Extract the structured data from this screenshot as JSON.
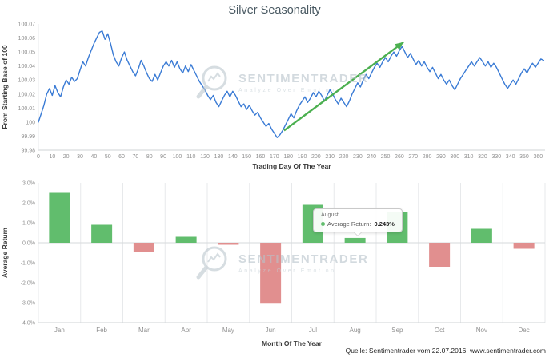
{
  "page": {
    "title": "Silver Seasonality",
    "source_note": "Quelle: Sentimentrader vom 22.07.2016, www.sentimentrader.com"
  },
  "watermark": {
    "brand": "SENTIMENTRADER",
    "tagline": "Analyze Over Emotion"
  },
  "tooltip": {
    "title": "August",
    "label": "Average Return:",
    "value": "0.243%"
  },
  "colors": {
    "line": "#3a7bd5",
    "positive_bar": "#61bd6d",
    "negative_bar": "#e18f8f",
    "arrow": "#4cb050",
    "grid": "#e7e9eb",
    "zero_line": "#d6d9db",
    "axis_line": "#cfd3d6",
    "tick_text": "#8f8f8f",
    "title_text": "#4a5a63"
  },
  "chart_data": [
    {
      "type": "line",
      "title": "Silver Seasonality",
      "xlabel": "Trading Day Of The Year",
      "ylabel": "From Starting Base of 100",
      "xlim": [
        0,
        365
      ],
      "ylim": [
        99.98,
        100.07
      ],
      "grid": false,
      "yticks": [
        99.98,
        99.99,
        100,
        100.01,
        100.02,
        100.03,
        100.04,
        100.05,
        100.06,
        100.07
      ],
      "ytick_labels": [
        "99.98",
        "99.99",
        "100",
        "100.01",
        "100.02",
        "100.03",
        "100.04",
        "100.05",
        "100.06",
        "100.07"
      ],
      "xticks": [
        0,
        10,
        20,
        30,
        40,
        50,
        60,
        70,
        80,
        90,
        100,
        110,
        120,
        130,
        140,
        150,
        160,
        170,
        180,
        190,
        200,
        210,
        220,
        230,
        240,
        250,
        260,
        270,
        280,
        290,
        300,
        310,
        320,
        330,
        340,
        350,
        360
      ],
      "x_step": 2,
      "y": [
        100.0,
        100.006,
        100.012,
        100.02,
        100.024,
        100.019,
        100.026,
        100.021,
        100.018,
        100.025,
        100.03,
        100.027,
        100.032,
        100.029,
        100.031,
        100.037,
        100.043,
        100.04,
        100.046,
        100.051,
        100.056,
        100.06,
        100.064,
        100.065,
        100.059,
        100.063,
        100.056,
        100.048,
        100.043,
        100.04,
        100.046,
        100.05,
        100.044,
        100.04,
        100.036,
        100.033,
        100.038,
        100.044,
        100.04,
        100.035,
        100.031,
        100.029,
        100.034,
        100.03,
        100.035,
        100.04,
        100.043,
        100.04,
        100.044,
        100.039,
        100.043,
        100.038,
        100.035,
        100.04,
        100.036,
        100.041,
        100.037,
        100.033,
        100.029,
        100.026,
        100.023,
        100.019,
        100.016,
        100.019,
        100.014,
        100.011,
        100.015,
        100.019,
        100.022,
        100.018,
        100.022,
        100.019,
        100.015,
        100.011,
        100.013,
        100.009,
        100.012,
        100.008,
        100.005,
        100.007,
        100.003,
        100.0,
        99.997,
        99.999,
        99.995,
        99.992,
        99.989,
        99.991,
        99.994,
        99.998,
        100.002,
        100.006,
        100.003,
        100.008,
        100.012,
        100.015,
        100.018,
        100.014,
        100.017,
        100.021,
        100.018,
        100.022,
        100.019,
        100.015,
        100.019,
        100.023,
        100.02,
        100.016,
        100.013,
        100.017,
        100.014,
        100.011,
        100.015,
        100.02,
        100.024,
        100.028,
        100.025,
        100.03,
        100.034,
        100.031,
        100.035,
        100.039,
        100.042,
        100.039,
        100.043,
        100.046,
        100.043,
        100.047,
        100.05,
        100.047,
        100.051,
        100.054,
        100.05,
        100.046,
        100.049,
        100.045,
        100.041,
        100.044,
        100.04,
        100.043,
        100.039,
        100.036,
        100.039,
        100.035,
        100.031,
        100.034,
        100.03,
        100.027,
        100.03,
        100.026,
        100.023,
        100.027,
        100.031,
        100.034,
        100.037,
        100.04,
        100.043,
        100.04,
        100.043,
        100.046,
        100.043,
        100.04,
        100.043,
        100.039,
        100.042,
        100.039,
        100.035,
        100.031,
        100.027,
        100.024,
        100.027,
        100.03,
        100.027,
        100.031,
        100.035,
        100.038,
        100.035,
        100.039,
        100.042,
        100.039,
        100.042,
        100.045,
        100.044
      ],
      "trend_arrow": {
        "x1": 177,
        "y1": 99.994,
        "x2": 263,
        "y2": 100.057
      }
    },
    {
      "type": "bar",
      "xlabel": "Month Of The Year",
      "ylabel": "Average Return",
      "categories": [
        "Jan",
        "Feb",
        "Mar",
        "Apr",
        "May",
        "Jun",
        "Jul",
        "Aug",
        "Sep",
        "Oct",
        "Nov",
        "Dec"
      ],
      "values": [
        2.5,
        0.9,
        -0.45,
        0.3,
        -0.1,
        -3.05,
        1.9,
        0.243,
        1.55,
        -1.2,
        0.7,
        -0.3
      ],
      "ylim": [
        -4,
        3
      ],
      "grid": true,
      "yticks": [
        3,
        2,
        1,
        0,
        -1,
        -2,
        -3,
        -4
      ],
      "ytick_labels": [
        "3.0%",
        "2.0%",
        "1.0%",
        "0.0%",
        "-1.0%",
        "-2.0%",
        "-3.0%",
        "-4.0%"
      ],
      "highlighted_category": "Aug"
    }
  ]
}
